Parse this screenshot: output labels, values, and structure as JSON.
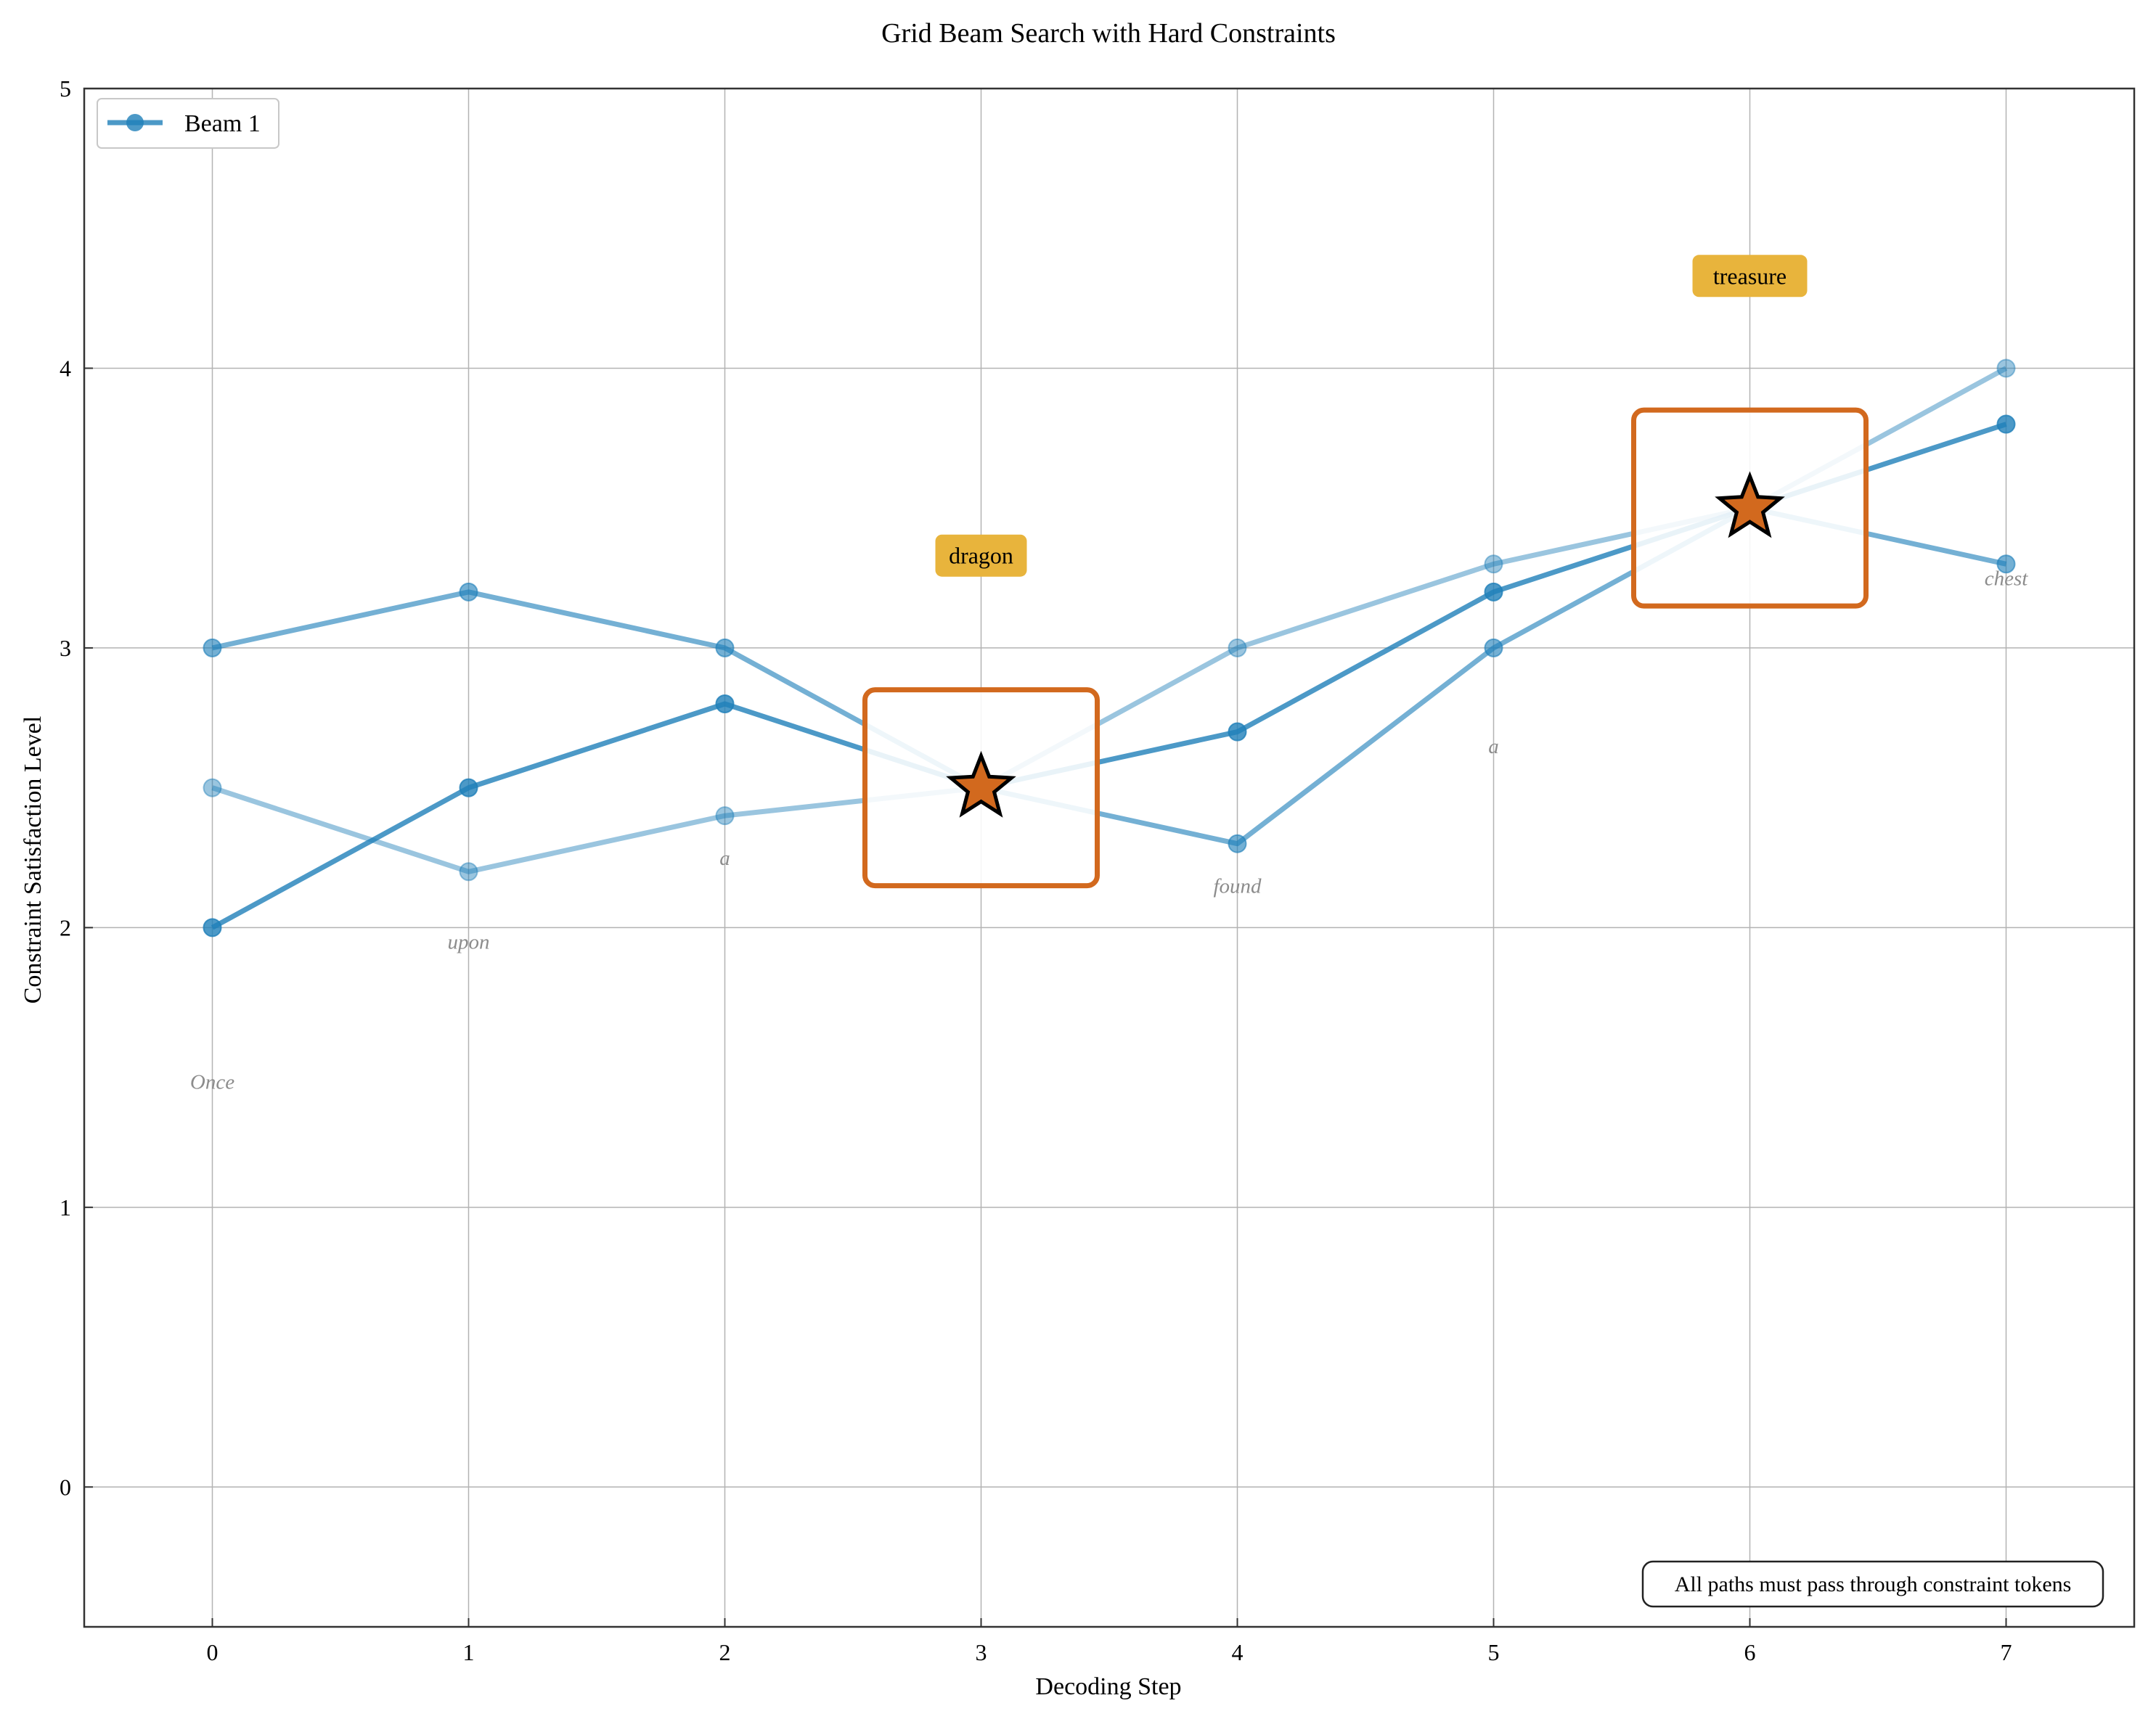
{
  "chart_data": {
    "type": "line",
    "title": "Grid Beam Search with Hard Constraints",
    "xlabel": "Decoding Step",
    "ylabel": "Constraint Satisfaction Level",
    "xlim": [
      -0.5,
      7.5
    ],
    "ylim": [
      -0.5,
      5
    ],
    "xticks": [
      0,
      1,
      2,
      3,
      4,
      5,
      6,
      7
    ],
    "yticks": [
      0,
      1,
      2,
      3,
      4,
      5
    ],
    "grid": true,
    "legend_position": "top-left",
    "x": [
      0,
      1,
      2,
      3,
      4,
      5,
      6,
      7
    ],
    "series": [
      {
        "name": "Beam 1",
        "values": [
          2.0,
          2.5,
          2.8,
          2.5,
          2.7,
          3.2,
          3.5,
          3.8
        ],
        "color": "#1f7fb9",
        "opacity": 0.8
      },
      {
        "name": "",
        "values": [
          3.0,
          3.2,
          3.0,
          2.5,
          2.3,
          3.0,
          3.5,
          3.3
        ],
        "color": "#1f7fb9",
        "opacity": 0.62
      },
      {
        "name": "",
        "values": [
          2.5,
          2.2,
          2.4,
          2.5,
          3.0,
          3.3,
          3.5,
          4.0
        ],
        "color": "#1f7fb9",
        "opacity": 0.45
      }
    ],
    "tokens": [
      {
        "x": 0,
        "y": 1.45,
        "text": "Once"
      },
      {
        "x": 1,
        "y": 1.95,
        "text": "upon"
      },
      {
        "x": 2,
        "y": 2.25,
        "text": "a"
      },
      {
        "x": 4,
        "y": 2.15,
        "text": "found"
      },
      {
        "x": 5,
        "y": 2.65,
        "text": "a"
      },
      {
        "x": 7,
        "y": 3.25,
        "text": "chest"
      }
    ],
    "constraints": [
      {
        "x": 3,
        "y": 2.5,
        "token": "dragon",
        "label_y": 3.33
      },
      {
        "x": 6,
        "y": 3.5,
        "token": "treasure",
        "label_y": 4.33
      }
    ],
    "note": "All paths must pass through constraint tokens",
    "colors": {
      "beam": "#1f7fb9",
      "constraint_box": "#d2691e",
      "star": "#d2691e",
      "token_label_bg": "#e8b43c"
    }
  }
}
